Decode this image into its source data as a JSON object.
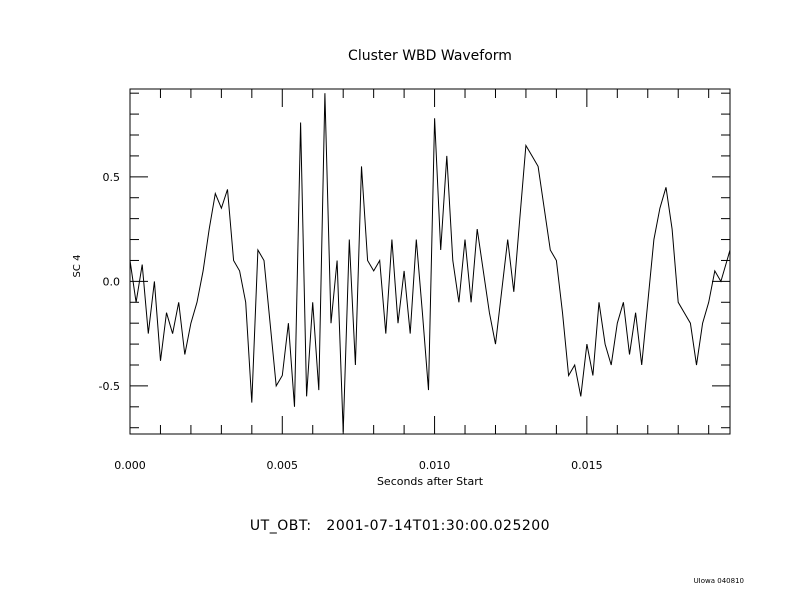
{
  "chart_data": {
    "type": "line",
    "title": "Cluster WBD Waveform",
    "xlabel": "Seconds after Start",
    "ylabel": "SC 4",
    "xlim": [
      0.0,
      0.0197
    ],
    "ylim": [
      -0.73,
      0.92
    ],
    "xticks": [
      0.0,
      0.005,
      0.01,
      0.015
    ],
    "xtick_labels": [
      "0.000",
      "0.005",
      "0.010",
      "0.015"
    ],
    "yticks": [
      0.5,
      0.0,
      -0.5
    ],
    "ytick_labels": [
      "0.5",
      "0.0",
      "-0.5"
    ],
    "grid": false,
    "series": [
      {
        "name": "SC 4",
        "x": [
          0.0,
          0.0002,
          0.0004,
          0.0006,
          0.0008,
          0.001,
          0.0012,
          0.0014,
          0.0016,
          0.0018,
          0.002,
          0.0022,
          0.0024,
          0.0026,
          0.0028,
          0.003,
          0.0032,
          0.0034,
          0.0036,
          0.0038,
          0.004,
          0.0042,
          0.0044,
          0.0046,
          0.0048,
          0.005,
          0.0052,
          0.0054,
          0.0056,
          0.0058,
          0.006,
          0.0062,
          0.0064,
          0.0066,
          0.0068,
          0.007,
          0.0072,
          0.0074,
          0.0076,
          0.0078,
          0.008,
          0.0082,
          0.0084,
          0.0086,
          0.0088,
          0.009,
          0.0092,
          0.0094,
          0.0096,
          0.0098,
          0.01,
          0.0102,
          0.0104,
          0.0106,
          0.0108,
          0.011,
          0.0112,
          0.0114,
          0.0116,
          0.0118,
          0.012,
          0.0122,
          0.0124,
          0.0126,
          0.0128,
          0.013,
          0.0132,
          0.0134,
          0.0136,
          0.0138,
          0.014,
          0.0142,
          0.0144,
          0.0146,
          0.0148,
          0.015,
          0.0152,
          0.0154,
          0.0156,
          0.0158,
          0.016,
          0.0162,
          0.0164,
          0.0166,
          0.0168,
          0.017,
          0.0172,
          0.0174,
          0.0176,
          0.0178,
          0.018,
          0.0182,
          0.0184,
          0.0186,
          0.0188,
          0.019,
          0.0192,
          0.0194,
          0.0196,
          0.0197
        ],
        "values": [
          0.1,
          -0.1,
          0.08,
          -0.25,
          0.0,
          -0.38,
          -0.15,
          -0.25,
          -0.1,
          -0.35,
          -0.2,
          -0.1,
          0.05,
          0.25,
          0.42,
          0.35,
          0.44,
          0.1,
          0.05,
          -0.1,
          -0.58,
          0.15,
          0.1,
          -0.2,
          -0.5,
          -0.45,
          -0.2,
          -0.6,
          0.76,
          -0.55,
          -0.1,
          -0.52,
          0.9,
          -0.2,
          0.1,
          -0.72,
          0.2,
          -0.4,
          0.55,
          0.1,
          0.05,
          0.1,
          -0.25,
          0.2,
          -0.2,
          0.05,
          -0.25,
          0.2,
          -0.15,
          -0.52,
          0.78,
          0.15,
          0.6,
          0.1,
          -0.1,
          0.2,
          -0.1,
          0.25,
          0.05,
          -0.15,
          -0.3,
          -0.05,
          0.2,
          -0.05,
          0.3,
          0.65,
          0.6,
          0.55,
          0.35,
          0.15,
          0.1,
          -0.15,
          -0.45,
          -0.4,
          -0.55,
          -0.3,
          -0.45,
          -0.1,
          -0.3,
          -0.4,
          -0.2,
          -0.1,
          -0.35,
          -0.15,
          -0.4,
          -0.1,
          0.2,
          0.35,
          0.45,
          0.25,
          -0.1,
          -0.15,
          -0.2,
          -0.4,
          -0.2,
          -0.1,
          0.05,
          0.0,
          0.1,
          0.15
        ]
      }
    ]
  },
  "footer": {
    "ut_label": "UT_OBT:",
    "ut_value": "2001-07-14T01:30:00.025200",
    "credit": "UIowa 040810"
  }
}
